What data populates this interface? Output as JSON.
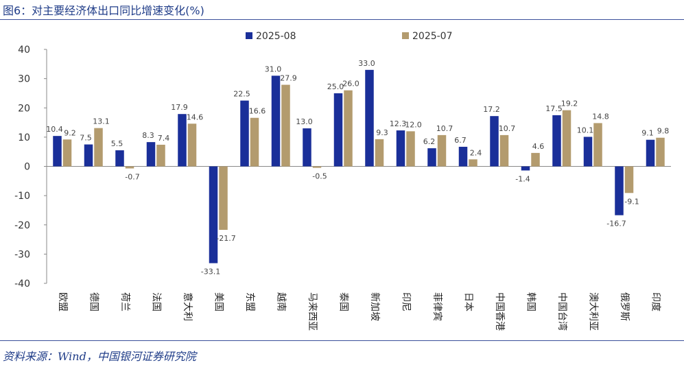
{
  "title": "图6：对主要经济体出口同比增速变化(%)",
  "source": "资料来源：Wind，中国银河证券研究院",
  "colors": {
    "series1": "#1a2f99",
    "series2": "#b39b6e",
    "rule": "#3a4f9a",
    "title": "#1f3c88"
  },
  "chart_data": {
    "type": "bar",
    "categories": [
      "欧盟",
      "德国",
      "荷兰",
      "法国",
      "意大利",
      "美国",
      "东盟",
      "越南",
      "马来西亚",
      "泰国",
      "新加坡",
      "印尼",
      "菲律宾",
      "日本",
      "中国香港",
      "韩国",
      "中国台湾",
      "澳大利亚",
      "俄罗斯",
      "印度"
    ],
    "series": [
      {
        "name": "2025-08",
        "values": [
          10.4,
          7.5,
          5.5,
          8.3,
          17.9,
          -33.1,
          22.5,
          31.0,
          13.0,
          25.0,
          33.0,
          12.3,
          6.2,
          6.7,
          17.2,
          -1.4,
          17.5,
          10.1,
          -16.7,
          9.1
        ]
      },
      {
        "name": "2025-07",
        "values": [
          9.2,
          13.1,
          -0.7,
          7.4,
          14.6,
          -21.7,
          16.6,
          27.9,
          -0.5,
          26.0,
          9.3,
          12.0,
          10.7,
          2.4,
          10.7,
          4.6,
          19.2,
          14.8,
          -9.1,
          9.8
        ]
      }
    ],
    "ylim": [
      -40,
      40
    ],
    "yticks": [
      -40,
      -30,
      -20,
      -10,
      0,
      10,
      20,
      30,
      40
    ],
    "legend_position": "top-center",
    "grid": false,
    "xlabel": "",
    "ylabel": ""
  }
}
